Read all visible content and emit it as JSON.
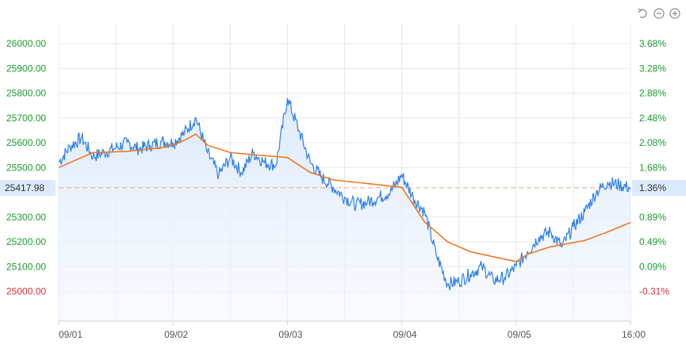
{
  "toolbar": {
    "reset_icon": "reset-icon",
    "zoom_out_icon": "zoom-out-icon",
    "zoom_in_icon": "zoom-in-icon"
  },
  "colors": {
    "price_line": "#2f80ed",
    "average_line": "#f07622",
    "area_fill": "#e8f1fd",
    "positive_label": "#1a9d2f",
    "negative_label": "#e03131",
    "reference_line": "#f2a57a",
    "current_badge_bg": "#dbeafc",
    "grid": "#e6e8ec"
  },
  "chart_data": {
    "type": "line",
    "ylim": [
      24880,
      26080
    ],
    "reference_price": 25081,
    "current_price_label": "25417.98",
    "current_change_label": "1.36%",
    "x_tick_labels": [
      "09/01",
      "09/02",
      "09/03",
      "09/04",
      "09/05",
      "16:00"
    ],
    "left_axis": [
      {
        "value": 26000,
        "label": "26000.00"
      },
      {
        "value": 25900,
        "label": "25900.00"
      },
      {
        "value": 25800,
        "label": "25800.00"
      },
      {
        "value": 25700,
        "label": "25700.00"
      },
      {
        "value": 25600,
        "label": "25600.00"
      },
      {
        "value": 25500,
        "label": "25500.00"
      },
      {
        "value": 25300,
        "label": "25300.00"
      },
      {
        "value": 25200,
        "label": "25200.00"
      },
      {
        "value": 25100,
        "label": "25100.00"
      },
      {
        "value": 25000,
        "label": "25000.00"
      }
    ],
    "right_axis": [
      {
        "value": 26000,
        "label": "3.68%"
      },
      {
        "value": 25900,
        "label": "3.28%"
      },
      {
        "value": 25800,
        "label": "2.88%"
      },
      {
        "value": 25700,
        "label": "2.48%"
      },
      {
        "value": 25600,
        "label": "2.08%"
      },
      {
        "value": 25500,
        "label": "1.68%"
      },
      {
        "value": 25300,
        "label": "0.89%"
      },
      {
        "value": 25200,
        "label": "0.49%"
      },
      {
        "value": 25100,
        "label": "0.09%"
      },
      {
        "value": 25000,
        "label": "-0.31%"
      }
    ],
    "series": [
      {
        "key": "price",
        "x": [
          0,
          0.1,
          0.2,
          0.3,
          0.4,
          0.5,
          0.6,
          0.7,
          0.8,
          0.9,
          1.0,
          1.1,
          1.2,
          1.3,
          1.4,
          1.5,
          1.6,
          1.7,
          1.8,
          1.9,
          2.0,
          2.1,
          2.2,
          2.3,
          2.4,
          2.5,
          2.6,
          2.7,
          2.8,
          2.9,
          3.0,
          3.1,
          3.2,
          3.3,
          3.4,
          3.5,
          3.6,
          3.7,
          3.8,
          3.9,
          4.0,
          4.1,
          4.2,
          4.3,
          4.4,
          4.5,
          4.6,
          4.7,
          4.8,
          4.9,
          5.0
        ],
        "y": [
          25520,
          25585,
          25620,
          25545,
          25560,
          25580,
          25600,
          25575,
          25590,
          25605,
          25600,
          25640,
          25700,
          25560,
          25470,
          25540,
          25480,
          25560,
          25520,
          25510,
          25780,
          25650,
          25520,
          25460,
          25420,
          25380,
          25350,
          25360,
          25380,
          25400,
          25470,
          25380,
          25320,
          25150,
          25030,
          25040,
          25070,
          25100,
          25045,
          25055,
          25100,
          25160,
          25220,
          25240,
          25180,
          25260,
          25320,
          25400,
          25440,
          25430,
          25417.98
        ]
      },
      {
        "key": "average",
        "x": [
          0,
          0.3,
          0.6,
          0.9,
          1.0,
          1.1,
          1.2,
          1.3,
          1.5,
          1.8,
          2.0,
          2.2,
          2.4,
          2.6,
          2.8,
          3.0,
          3.1,
          3.2,
          3.4,
          3.6,
          3.8,
          4.0,
          4.1,
          4.3,
          4.6,
          4.8,
          5.0
        ],
        "y": [
          25500,
          25560,
          25565,
          25580,
          25590,
          25610,
          25635,
          25590,
          25560,
          25548,
          25540,
          25480,
          25450,
          25440,
          25430,
          25420,
          25350,
          25280,
          25200,
          25160,
          25140,
          25120,
          25150,
          25180,
          25205,
          25240,
          25278
        ]
      }
    ]
  }
}
